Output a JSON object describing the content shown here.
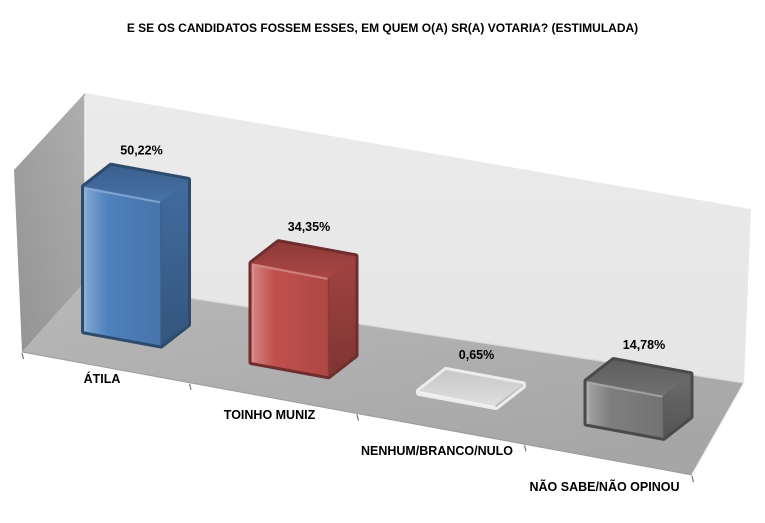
{
  "chart_data": {
    "type": "bar",
    "projection": "3d",
    "title": "E SE OS CANDIDATOS FOSSEM ESSES, EM QUEM O(A) SR(A) VOTARIA? (ESTIMULADA)",
    "categories": [
      "ÁTILA",
      "TOINHO MUNIZ",
      "NENHUM/BRANCO/NULO",
      "NÃO SABE/NÃO OPINOU"
    ],
    "values": [
      50.22,
      34.35,
      0.65,
      14.78
    ],
    "value_labels": [
      "50,22%",
      "34,35%",
      "0,65%",
      "14,78%"
    ],
    "colors": [
      "#4f81bd",
      "#c0504d",
      "#d9d9d9",
      "#7f7f7f"
    ],
    "unit": "%",
    "xlabel": "",
    "ylabel": "",
    "legend": "none",
    "grid": "off",
    "scene_colors": {
      "back_wall": "#eaeaea",
      "side_wall": "#a3a3a3",
      "floor": "#b3b3b3",
      "edge_highlight": "#f2f2f2",
      "tick": "#757575"
    }
  }
}
